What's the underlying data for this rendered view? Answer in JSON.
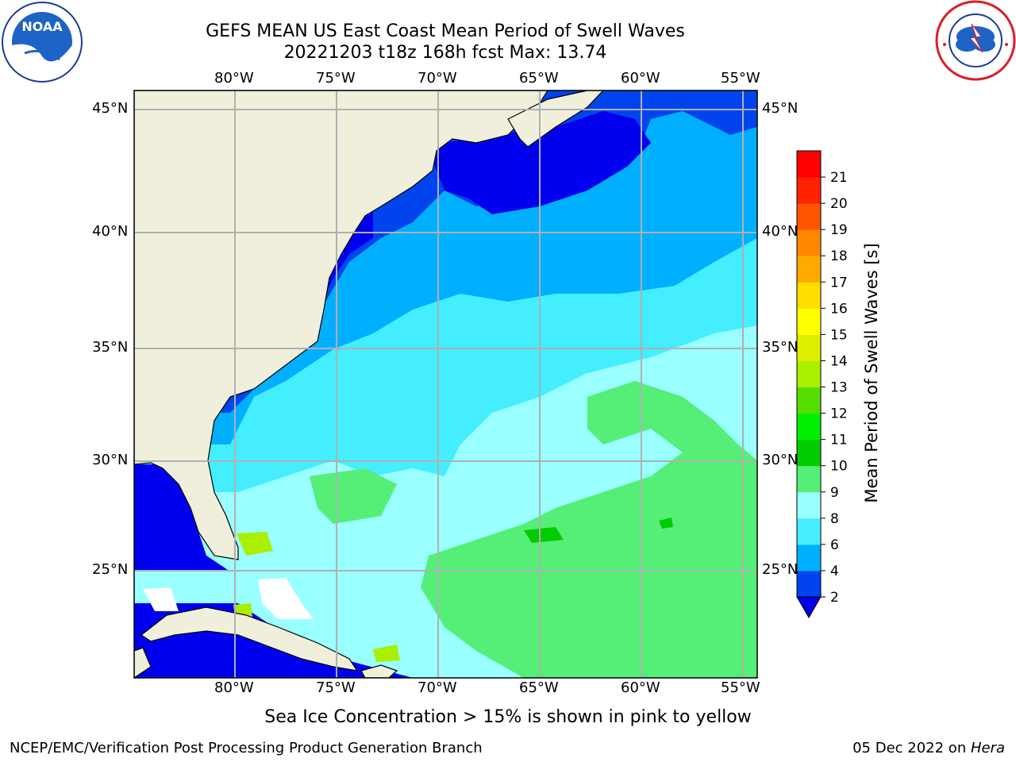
{
  "header": {
    "title_line1": "GEFS MEAN US East Coast Mean Period of Swell Waves",
    "title_line2": "20221203 t18z 168h fcst   Max: 13.74"
  },
  "logos": {
    "left": "noaa-logo",
    "right": "national-weather-service-logo",
    "left_text": "NATIONAL OCEANIC AND ATMOSPHERIC ADMINISTRATION · U.S. DEPARTMENT OF COMMERCE",
    "left_center": "NOAA",
    "right_text": "NATIONAL WEATHER SERVICE"
  },
  "map": {
    "lon_labels": [
      "80°W",
      "75°W",
      "70°W",
      "65°W",
      "60°W",
      "55°W"
    ],
    "lat_labels": [
      "45°N",
      "40°N",
      "35°N",
      "30°N",
      "25°N"
    ],
    "extent": {
      "lon": [
        -85,
        -54.4
      ],
      "lat": [
        20.5,
        45.8
      ]
    },
    "land_color": "#efefdc",
    "grid_color": "#b0b0b0"
  },
  "colorbar": {
    "label": "Mean Period of Swell Waves [s]",
    "ticks": [
      "2",
      "4",
      "6",
      "8",
      "9",
      "10",
      "11",
      "12",
      "13",
      "14",
      "15",
      "16",
      "17",
      "18",
      "19",
      "20",
      "21"
    ],
    "colors": [
      "#0044ee",
      "#00b0ff",
      "#44eeff",
      "#99ffff",
      "#55ee77",
      "#00cc00",
      "#00ee00",
      "#55dd00",
      "#aaee00",
      "#ddee00",
      "#ffff00",
      "#ffdd00",
      "#ffaa00",
      "#ff8800",
      "#ff5500",
      "#ff2200",
      "#ff0000"
    ],
    "under_color": "#0000ee"
  },
  "caption": "Sea Ice Concentration > 15% is shown in pink to yellow",
  "footer": {
    "left": "NCEP/EMC/Verification Post Processing Product Generation Branch",
    "date": "05 Dec 2022 on ",
    "machine": "Hera"
  }
}
